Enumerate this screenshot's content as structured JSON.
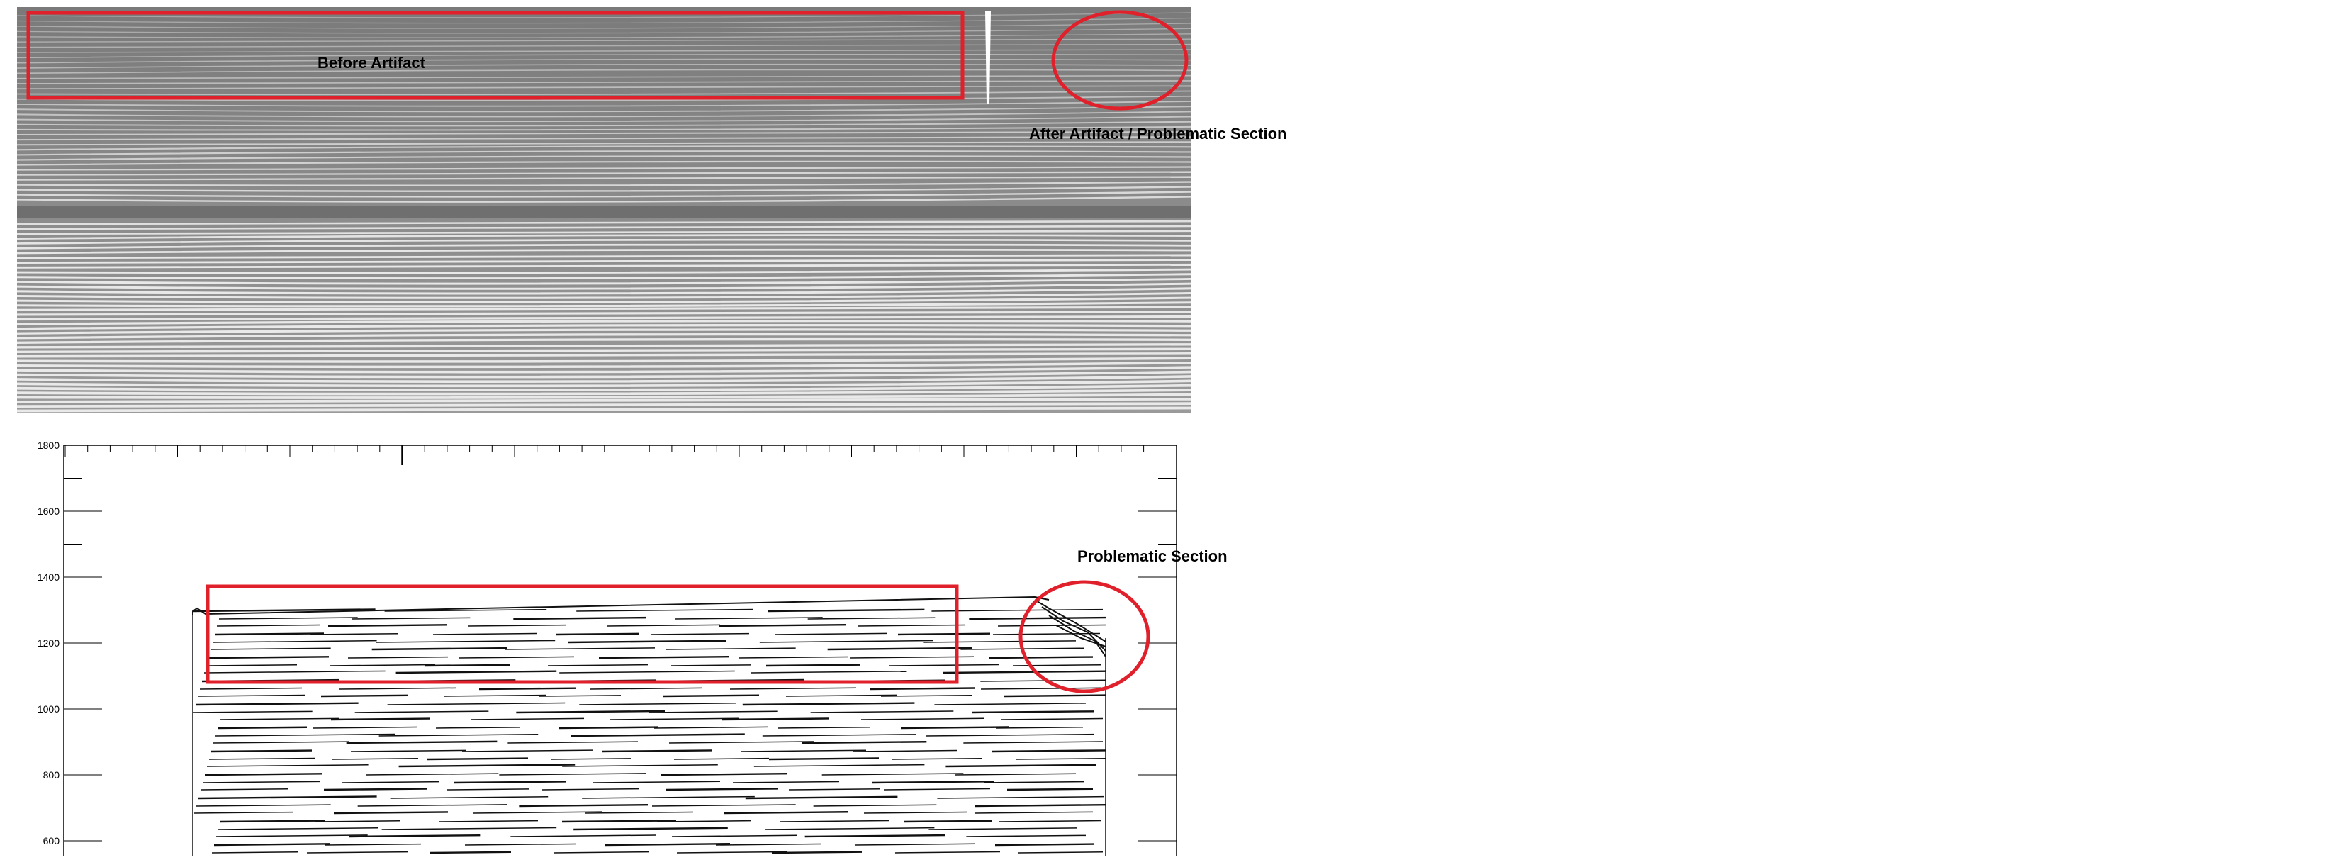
{
  "annotations": {
    "before_artifact": "Before Artifact",
    "after_artifact": "After Artifact  / Problematic Section",
    "problematic_section": "Problematic Section"
  },
  "plot": {
    "y_ticks": [
      "1800",
      "1600",
      "1400",
      "1200",
      "1000",
      "800",
      "600"
    ]
  },
  "colors": {
    "highlight": "#e0202a",
    "image_bg": "#7a7a7a",
    "fringe": "#f2f2f2",
    "trace": "#111111"
  }
}
